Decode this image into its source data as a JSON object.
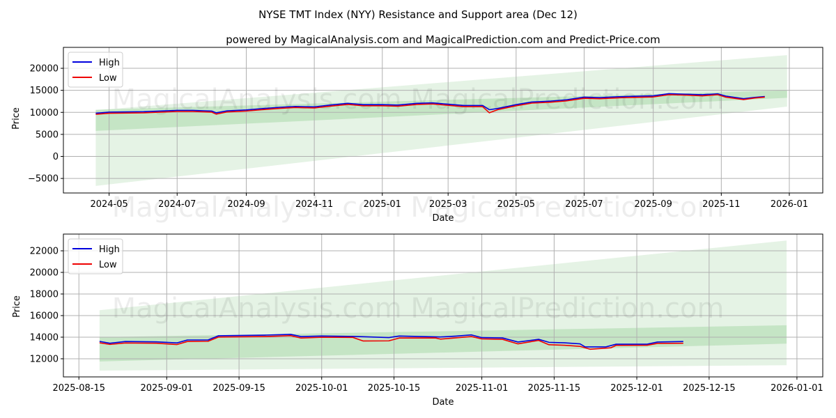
{
  "title": "NYSE TMT Index (NYY) Resistance and Support area (Dec 12)",
  "subtitle": "powered by MagicalAnalysis.com and MagicalPrediction.com and Predict-Price.com",
  "watermark": "MagicalAnalysis.com    MagicalPrediction.com",
  "colors": {
    "high": "#0000dd",
    "low": "#ee0000",
    "band_light": "#d9ecd9",
    "band_dark": "#b5d9b5"
  },
  "chart_data": [
    {
      "type": "line",
      "xlabel": "Date",
      "ylabel": "Price",
      "xlim": [
        "2024-03-21",
        "2026-01-31"
      ],
      "ylim": [
        -8300,
        24750
      ],
      "yticks": [
        -5000,
        0,
        5000,
        10000,
        15000,
        20000
      ],
      "xticks": [
        [
          "2024-05-01",
          "2024-05"
        ],
        [
          "2024-07-01",
          "2024-07"
        ],
        [
          "2024-09-01",
          "2024-09"
        ],
        [
          "2024-11-01",
          "2024-11"
        ],
        [
          "2025-01-01",
          "2025-01"
        ],
        [
          "2025-03-01",
          "2025-03"
        ],
        [
          "2025-05-01",
          "2025-05"
        ],
        [
          "2025-07-01",
          "2025-07"
        ],
        [
          "2025-09-01",
          "2025-09"
        ],
        [
          "2025-11-01",
          "2025-11"
        ],
        [
          "2026-01-01",
          "2026-01"
        ]
      ],
      "grid": true,
      "legend": {
        "position": "top-left",
        "entries": [
          "High",
          "Low"
        ]
      },
      "bands": [
        {
          "name": "outer",
          "start": "2024-04-19",
          "end": "2025-12-30",
          "upper": [
            10500,
            23000
          ],
          "lower": [
            -6700,
            11300
          ]
        },
        {
          "name": "inner",
          "start": "2024-04-19",
          "end": "2025-12-30",
          "upper": [
            10600,
            15000
          ],
          "lower": [
            5800,
            13300
          ]
        }
      ],
      "series": [
        {
          "name": "High",
          "points": [
            [
              "2024-04-19",
              9800
            ],
            [
              "2024-05-01",
              10050
            ],
            [
              "2024-06-01",
              10150
            ],
            [
              "2024-07-01",
              10450
            ],
            [
              "2024-07-15",
              10450
            ],
            [
              "2024-08-01",
              10300
            ],
            [
              "2024-08-05",
              9900
            ],
            [
              "2024-08-15",
              10350
            ],
            [
              "2024-09-01",
              10550
            ],
            [
              "2024-09-15",
              10850
            ],
            [
              "2024-10-01",
              11150
            ],
            [
              "2024-10-15",
              11350
            ],
            [
              "2024-11-01",
              11250
            ],
            [
              "2024-11-15",
              11650
            ],
            [
              "2024-12-01",
              12050
            ],
            [
              "2024-12-15",
              11750
            ],
            [
              "2025-01-01",
              11750
            ],
            [
              "2025-01-15",
              11650
            ],
            [
              "2025-02-01",
              12050
            ],
            [
              "2025-02-15",
              12150
            ],
            [
              "2025-03-01",
              11850
            ],
            [
              "2025-03-15",
              11550
            ],
            [
              "2025-04-01",
              11550
            ],
            [
              "2025-04-07",
              10600
            ],
            [
              "2025-04-15",
              10900
            ],
            [
              "2025-05-01",
              11750
            ],
            [
              "2025-05-15",
              12350
            ],
            [
              "2025-06-01",
              12550
            ],
            [
              "2025-06-15",
              12850
            ],
            [
              "2025-07-01",
              13450
            ],
            [
              "2025-07-15",
              13350
            ],
            [
              "2025-08-01",
              13550
            ],
            [
              "2025-08-15",
              13650
            ],
            [
              "2025-09-01",
              13750
            ],
            [
              "2025-09-15",
              14250
            ],
            [
              "2025-10-01",
              14100
            ],
            [
              "2025-10-15",
              14000
            ],
            [
              "2025-10-29",
              14200
            ],
            [
              "2025-11-05",
              13700
            ],
            [
              "2025-11-21",
              13100
            ],
            [
              "2025-12-01",
              13400
            ],
            [
              "2025-12-10",
              13600
            ]
          ]
        },
        {
          "name": "Low",
          "points": [
            [
              "2024-04-19",
              9550
            ],
            [
              "2024-05-01",
              9800
            ],
            [
              "2024-06-01",
              9900
            ],
            [
              "2024-07-01",
              10200
            ],
            [
              "2024-07-15",
              10200
            ],
            [
              "2024-08-01",
              10050
            ],
            [
              "2024-08-05",
              9600
            ],
            [
              "2024-08-15",
              10100
            ],
            [
              "2024-09-01",
              10300
            ],
            [
              "2024-09-15",
              10600
            ],
            [
              "2024-10-01",
              10900
            ],
            [
              "2024-10-15",
              11100
            ],
            [
              "2024-11-01",
              11000
            ],
            [
              "2024-11-15",
              11400
            ],
            [
              "2024-12-01",
              11800
            ],
            [
              "2024-12-15",
              11500
            ],
            [
              "2025-01-01",
              11500
            ],
            [
              "2025-01-15",
              11400
            ],
            [
              "2025-02-01",
              11800
            ],
            [
              "2025-02-15",
              11900
            ],
            [
              "2025-03-01",
              11600
            ],
            [
              "2025-03-15",
              11300
            ],
            [
              "2025-04-01",
              11300
            ],
            [
              "2025-04-07",
              9900
            ],
            [
              "2025-04-15",
              10650
            ],
            [
              "2025-05-01",
              11500
            ],
            [
              "2025-05-15",
              12100
            ],
            [
              "2025-06-01",
              12300
            ],
            [
              "2025-06-15",
              12600
            ],
            [
              "2025-07-01",
              13200
            ],
            [
              "2025-07-15",
              13100
            ],
            [
              "2025-08-01",
              13300
            ],
            [
              "2025-08-15",
              13400
            ],
            [
              "2025-09-01",
              13500
            ],
            [
              "2025-09-15",
              14000
            ],
            [
              "2025-10-01",
              13900
            ],
            [
              "2025-10-15",
              13750
            ],
            [
              "2025-10-29",
              14000
            ],
            [
              "2025-11-05",
              13450
            ],
            [
              "2025-11-21",
              12900
            ],
            [
              "2025-12-01",
              13250
            ],
            [
              "2025-12-10",
              13450
            ]
          ]
        }
      ]
    },
    {
      "type": "line",
      "xlabel": "Date",
      "ylabel": "Price",
      "xlim": [
        "2025-08-12",
        "2026-01-06"
      ],
      "ylim": [
        10320,
        23550
      ],
      "yticks": [
        12000,
        14000,
        16000,
        18000,
        20000,
        22000
      ],
      "xticks": [
        [
          "2025-08-15",
          "2025-08-15"
        ],
        [
          "2025-09-01",
          "2025-09-01"
        ],
        [
          "2025-09-15",
          "2025-09-15"
        ],
        [
          "2025-10-01",
          "2025-10-01"
        ],
        [
          "2025-10-15",
          "2025-10-15"
        ],
        [
          "2025-11-01",
          "2025-11-01"
        ],
        [
          "2025-11-15",
          "2025-11-15"
        ],
        [
          "2025-12-01",
          "2025-12-01"
        ],
        [
          "2025-12-15",
          "2025-12-15"
        ],
        [
          "2026-01-01",
          "2026-01-01"
        ]
      ],
      "grid": true,
      "legend": {
        "position": "top-left",
        "entries": [
          "High",
          "Low"
        ]
      },
      "bands": [
        {
          "name": "outer",
          "start": "2025-08-19",
          "end": "2025-12-30",
          "upper": [
            16500,
            22950
          ],
          "lower": [
            10900,
            11400
          ]
        },
        {
          "name": "inner",
          "start": "2025-08-19",
          "end": "2025-12-30",
          "upper": [
            14000,
            15100
          ],
          "lower": [
            11750,
            13400
          ]
        }
      ],
      "series": [
        {
          "name": "High",
          "points": [
            [
              "2025-08-19",
              13610
            ],
            [
              "2025-08-21",
              13440
            ],
            [
              "2025-08-24",
              13600
            ],
            [
              "2025-08-30",
              13570
            ],
            [
              "2025-09-03",
              13470
            ],
            [
              "2025-09-05",
              13740
            ],
            [
              "2025-09-09",
              13740
            ],
            [
              "2025-09-11",
              14130
            ],
            [
              "2025-09-20",
              14190
            ],
            [
              "2025-09-25",
              14260
            ],
            [
              "2025-09-27",
              14060
            ],
            [
              "2025-10-01",
              14110
            ],
            [
              "2025-10-08",
              14060
            ],
            [
              "2025-10-14",
              13960
            ],
            [
              "2025-10-16",
              14110
            ],
            [
              "2025-10-24",
              14020
            ],
            [
              "2025-10-27",
              14100
            ],
            [
              "2025-10-30",
              14210
            ],
            [
              "2025-11-01",
              13960
            ],
            [
              "2025-11-05",
              13930
            ],
            [
              "2025-11-08",
              13550
            ],
            [
              "2025-11-12",
              13800
            ],
            [
              "2025-11-14",
              13520
            ],
            [
              "2025-11-17",
              13480
            ],
            [
              "2025-11-20",
              13380
            ],
            [
              "2025-11-21",
              13100
            ],
            [
              "2025-11-25",
              13100
            ],
            [
              "2025-11-27",
              13350
            ],
            [
              "2025-12-03",
              13350
            ],
            [
              "2025-12-05",
              13550
            ],
            [
              "2025-12-10",
              13600
            ]
          ]
        },
        {
          "name": "Low",
          "points": [
            [
              "2025-08-19",
              13480
            ],
            [
              "2025-08-21",
              13330
            ],
            [
              "2025-08-24",
              13460
            ],
            [
              "2025-08-30",
              13440
            ],
            [
              "2025-09-03",
              13320
            ],
            [
              "2025-09-05",
              13600
            ],
            [
              "2025-09-09",
              13620
            ],
            [
              "2025-09-11",
              14010
            ],
            [
              "2025-09-20",
              14060
            ],
            [
              "2025-09-25",
              14140
            ],
            [
              "2025-09-27",
              13920
            ],
            [
              "2025-10-01",
              13990
            ],
            [
              "2025-10-07",
              13980
            ],
            [
              "2025-10-09",
              13650
            ],
            [
              "2025-10-14",
              13660
            ],
            [
              "2025-10-16",
              13920
            ],
            [
              "2025-10-23",
              13930
            ],
            [
              "2025-10-24",
              13820
            ],
            [
              "2025-10-30",
              14060
            ],
            [
              "2025-11-01",
              13840
            ],
            [
              "2025-11-05",
              13800
            ],
            [
              "2025-11-08",
              13380
            ],
            [
              "2025-11-12",
              13700
            ],
            [
              "2025-11-14",
              13300
            ],
            [
              "2025-11-17",
              13250
            ],
            [
              "2025-11-20",
              13150
            ],
            [
              "2025-11-22",
              12880
            ],
            [
              "2025-11-26",
              13020
            ],
            [
              "2025-11-27",
              13240
            ],
            [
              "2025-12-03",
              13250
            ],
            [
              "2025-12-05",
              13420
            ],
            [
              "2025-12-10",
              13440
            ]
          ]
        }
      ]
    }
  ]
}
